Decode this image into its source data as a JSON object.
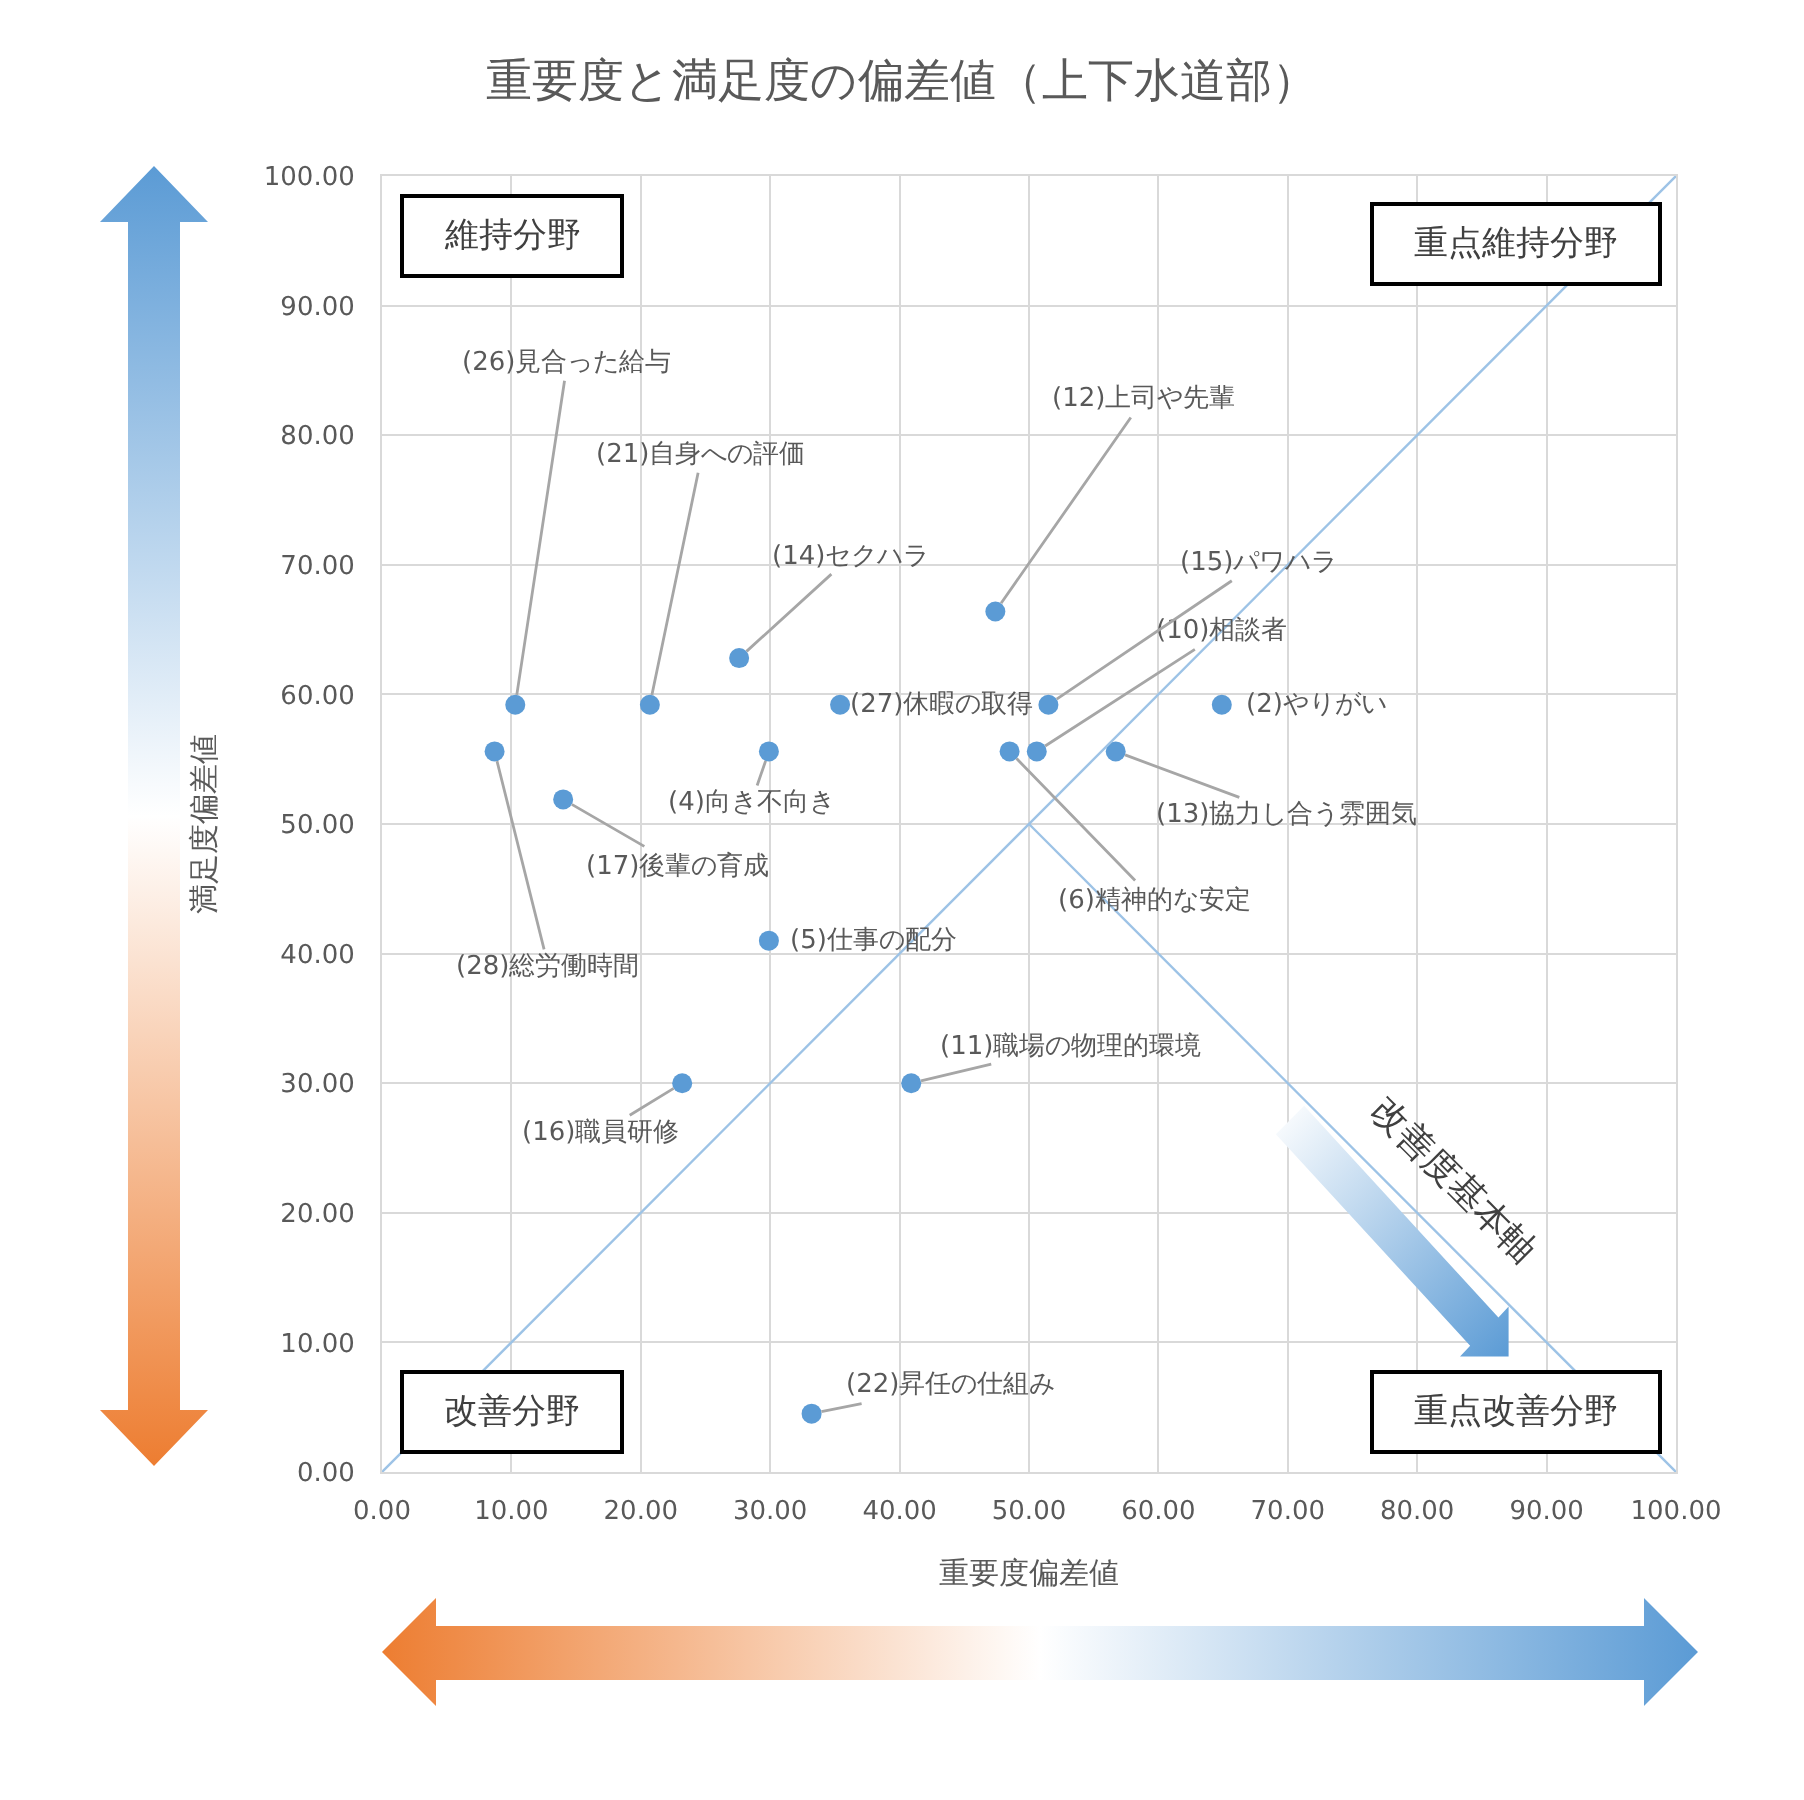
{
  "chart_data": {
    "type": "scatter",
    "title": "重要度と満足度の偏差値（上下水道部）",
    "xlabel": "重要度偏差値",
    "ylabel": "満足度偏差値",
    "xlim": [
      0,
      100
    ],
    "ylim": [
      0,
      100
    ],
    "xticks": [
      {
        "value": 0,
        "label": "0.00"
      },
      {
        "value": 10,
        "label": "10.00"
      },
      {
        "value": 20,
        "label": "20.00"
      },
      {
        "value": 30,
        "label": "30.00"
      },
      {
        "value": 40,
        "label": "40.00"
      },
      {
        "value": 50,
        "label": "50.00"
      },
      {
        "value": 60,
        "label": "60.00"
      },
      {
        "value": 70,
        "label": "70.00"
      },
      {
        "value": 80,
        "label": "80.00"
      },
      {
        "value": 90,
        "label": "90.00"
      },
      {
        "value": 100,
        "label": "100.00"
      }
    ],
    "yticks": [
      {
        "value": 0,
        "label": "0.00"
      },
      {
        "value": 10,
        "label": "10.00"
      },
      {
        "value": 20,
        "label": "20.00"
      },
      {
        "value": 30,
        "label": "30.00"
      },
      {
        "value": 40,
        "label": "40.00"
      },
      {
        "value": 50,
        "label": "50.00"
      },
      {
        "value": 60,
        "label": "60.00"
      },
      {
        "value": 70,
        "label": "70.00"
      },
      {
        "value": 80,
        "label": "80.00"
      },
      {
        "value": 90,
        "label": "90.00"
      },
      {
        "value": 100,
        "label": "100.00"
      }
    ],
    "grid": true,
    "marker": "circle",
    "series": [
      {
        "color": "#5b9bd5",
        "x": [
          64.9,
          29.9,
          29.9,
          48.5,
          50.6,
          40.9,
          47.4,
          56.7,
          27.6,
          51.5,
          23.2,
          14.0,
          20.7,
          33.2,
          10.3,
          35.4,
          8.7
        ],
        "values": [
          59.2,
          55.6,
          41.0,
          55.6,
          55.6,
          30.0,
          66.4,
          55.6,
          62.8,
          59.2,
          30.0,
          51.9,
          59.2,
          4.5,
          59.2,
          59.2,
          55.6
        ]
      },
      {
        "type": "line",
        "color": "#9dc3e6",
        "marker": "none",
        "x": [
          0,
          100
        ],
        "values": [
          0,
          100
        ]
      },
      {
        "type": "line",
        "color": "#9dc3e6",
        "marker": "none",
        "x": [
          50,
          100
        ],
        "values": [
          50,
          0
        ]
      }
    ],
    "annotations": [
      {
        "text": "(2)やりがい",
        "x": 64.9,
        "y": 59.2
      },
      {
        "text": "(4)向き不向き",
        "x": 29.9,
        "y": 55.6
      },
      {
        "text": "(5)仕事の配分",
        "x": 29.9,
        "y": 41.0
      },
      {
        "text": "(6)精神的な安定",
        "x": 48.5,
        "y": 55.6
      },
      {
        "text": "(10)相談者",
        "x": 50.6,
        "y": 55.6
      },
      {
        "text": "(11)職場の物理的環境",
        "x": 40.9,
        "y": 30.0
      },
      {
        "text": "(12)上司や先輩",
        "x": 47.4,
        "y": 66.4
      },
      {
        "text": "(13)協力し合う雰囲気",
        "x": 56.7,
        "y": 55.6
      },
      {
        "text": "(14)セクハラ",
        "x": 27.6,
        "y": 62.8
      },
      {
        "text": "(15)パワハラ",
        "x": 51.5,
        "y": 59.2
      },
      {
        "text": "(16)職員研修",
        "x": 23.2,
        "y": 30.0
      },
      {
        "text": "(17)後輩の育成",
        "x": 14.0,
        "y": 51.9
      },
      {
        "text": "(21)自身への評価",
        "x": 20.7,
        "y": 59.2
      },
      {
        "text": "(22)昇任の仕組み",
        "x": 33.2,
        "y": 4.5
      },
      {
        "text": "(26)見合った給与",
        "x": 10.3,
        "y": 59.2
      },
      {
        "text": "(27)休暇の取得",
        "x": 35.4,
        "y": 59.2
      },
      {
        "text": "(28)総労働時間",
        "x": 8.7,
        "y": 55.6
      },
      "維持分野",
      "重点維持分野",
      "改善分野",
      "重点改善分野",
      "改善度基本軸"
    ]
  }
}
